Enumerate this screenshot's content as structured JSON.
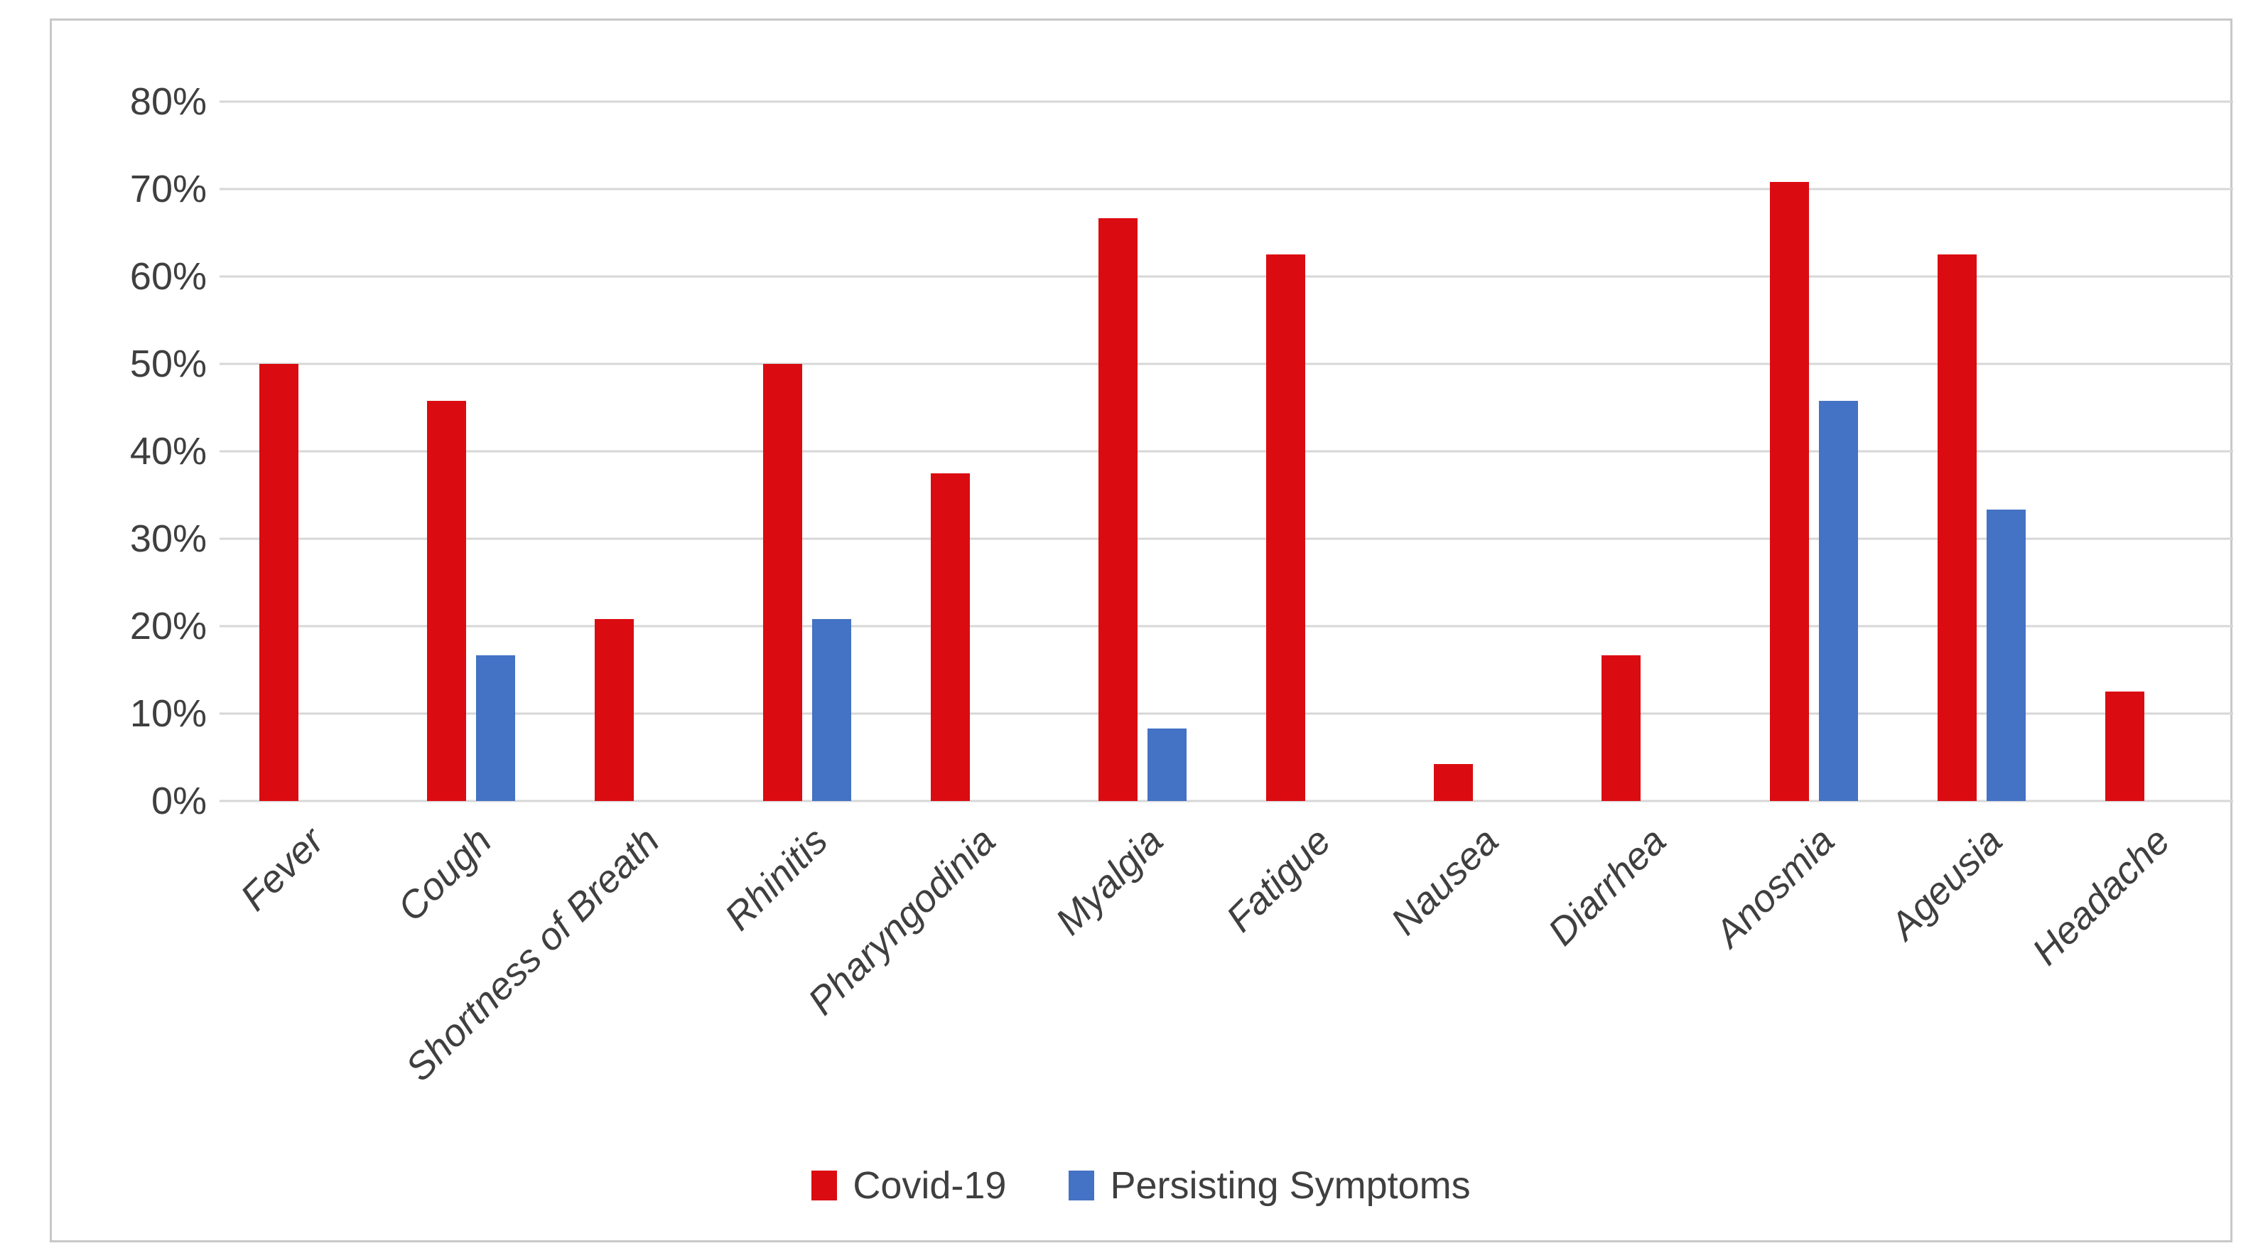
{
  "chart_data": {
    "type": "bar",
    "title": "",
    "categories": [
      "Fever",
      "Cough",
      "Shortness of Breath",
      "Rhinitis",
      "Pharyngodinia",
      "Myalgia",
      "Fatigue",
      "Nausea",
      "Diarrhea",
      "Anosmia",
      "Ageusia",
      "Headache"
    ],
    "series": [
      {
        "key": "covid19",
        "name": "Covid-19",
        "color": "#db0c11",
        "values": [
          50.0,
          45.8,
          20.8,
          50.0,
          37.5,
          66.7,
          62.5,
          4.2,
          16.7,
          70.8,
          62.5,
          12.5
        ]
      },
      {
        "key": "persisting-symptoms",
        "name": "Persisting Symptoms",
        "color": "#4472c4",
        "values": [
          0,
          16.7,
          0,
          20.8,
          0,
          8.3,
          0,
          0,
          0,
          45.8,
          33.3,
          0
        ]
      }
    ],
    "ylim": [
      0,
      80
    ],
    "ytick_values": [
      0,
      10,
      20,
      30,
      40,
      50,
      60,
      70,
      80
    ],
    "ytick_labels": [
      "0%",
      "10%",
      "20%",
      "30%",
      "40%",
      "50%",
      "60%",
      "70%",
      "80%"
    ],
    "grid": true,
    "legend_position": "bottom",
    "colors": {
      "gridline": "#d7d7d7",
      "axis_text": "#3f3f3f",
      "frame_border": "#c8c8c8",
      "background": "#ffffff"
    }
  }
}
